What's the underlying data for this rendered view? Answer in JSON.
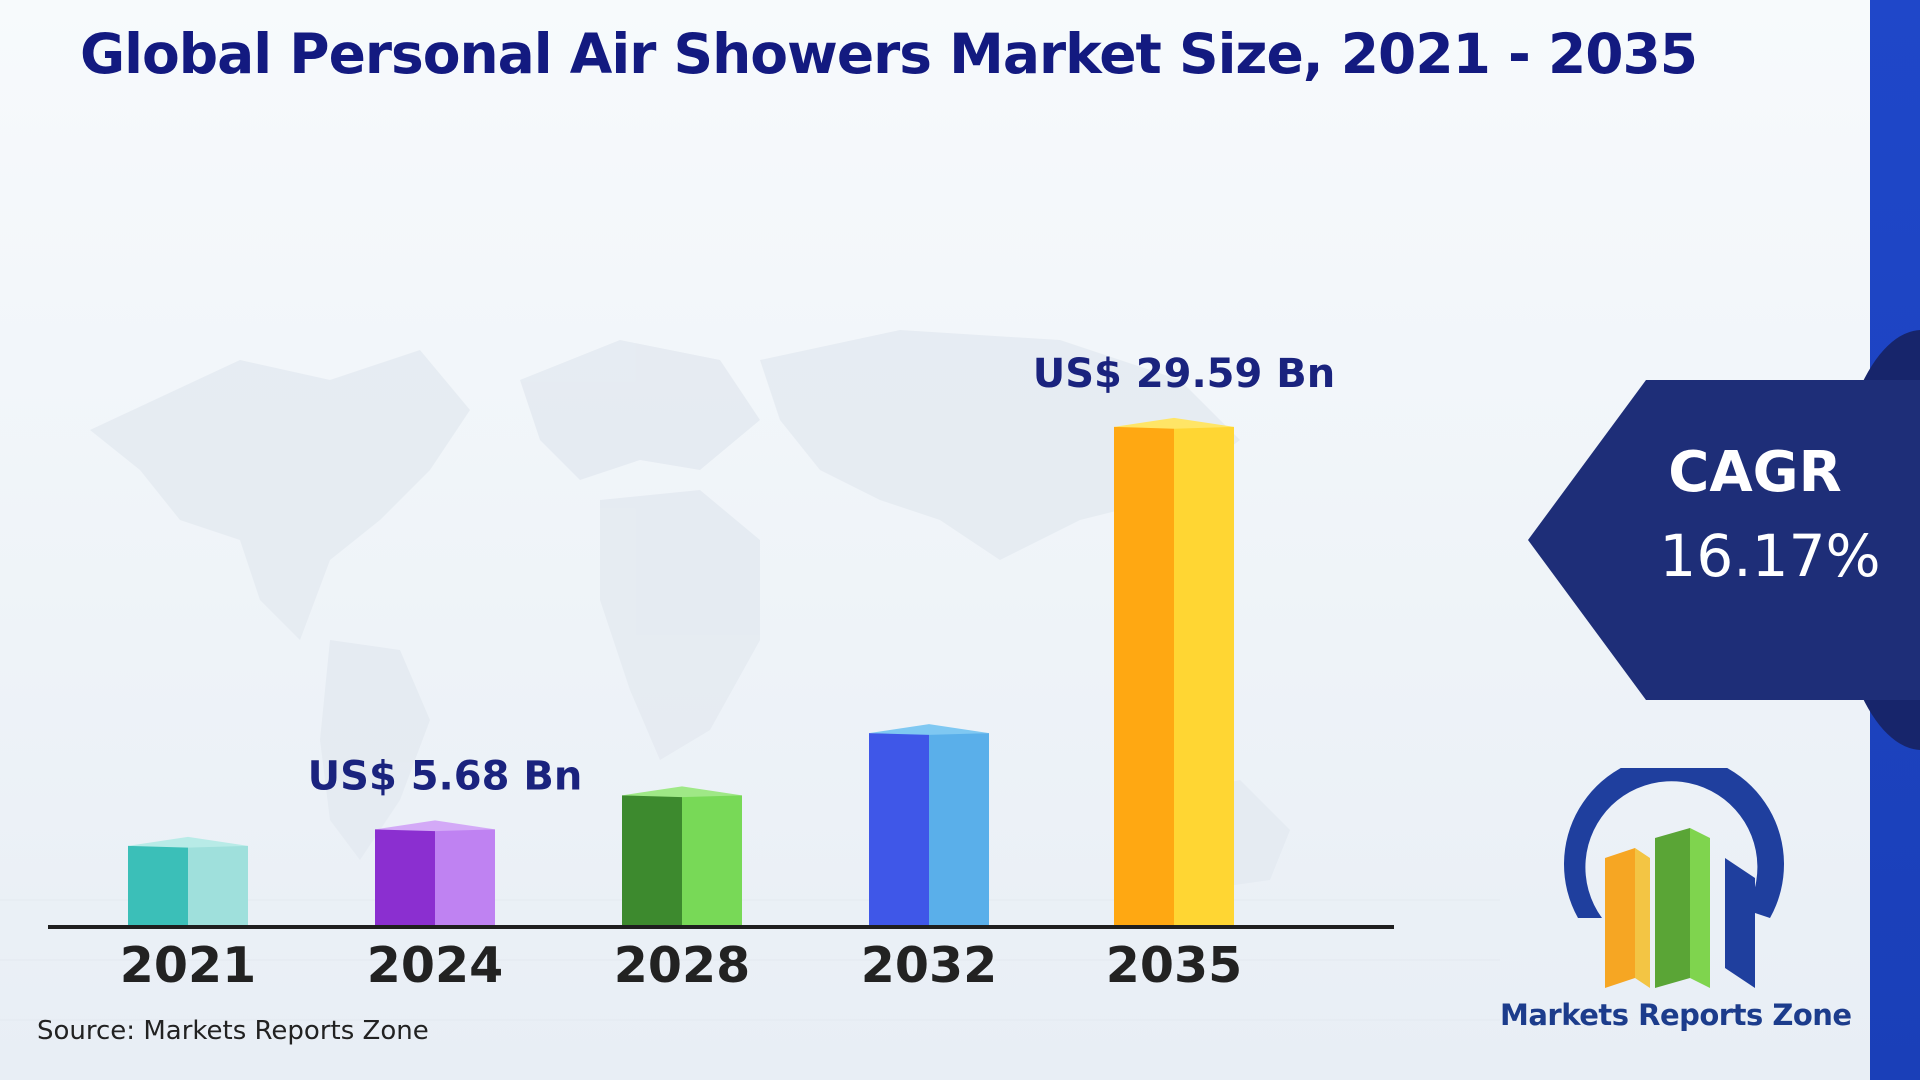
{
  "title": "Global Personal Air Showers Market Size, 2021 - 2035",
  "source": "Source: Markets Reports Zone",
  "cagr": {
    "label": "CAGR",
    "value": "16.17%"
  },
  "logo": {
    "name": "Markets Reports Zone"
  },
  "colors": {
    "title": "#131a80",
    "badge": "#1e2e78",
    "strip": "#1f47c9",
    "bars": [
      {
        "front": "#3bbfb8",
        "side": "#9fe0dc",
        "top": "#b8ebe7"
      },
      {
        "front": "#8b2fd0",
        "side": "#bf82f2",
        "top": "#d3a9f7"
      },
      {
        "front": "#3d8a2e",
        "side": "#78d957",
        "top": "#9fe886"
      },
      {
        "front": "#3f57e8",
        "side": "#5aafea",
        "top": "#7fc8f2"
      },
      {
        "front": "#ffa812",
        "side": "#ffd633",
        "top": "#ffe566"
      }
    ]
  },
  "chart_data": {
    "type": "bar",
    "title": "Global Personal Air Showers Market Size, 2021 - 2035",
    "categories": [
      "2021",
      "2024",
      "2028",
      "2032",
      "2035"
    ],
    "values": [
      4.7,
      5.68,
      7.7,
      11.4,
      29.59
    ],
    "unit": "US$ Bn",
    "data_labels": [
      "",
      "US$ 5.68 Bn",
      "",
      "",
      "US$ 29.59 Bn"
    ],
    "ylim": [
      0,
      30
    ],
    "grid": false,
    "legend": "none"
  }
}
